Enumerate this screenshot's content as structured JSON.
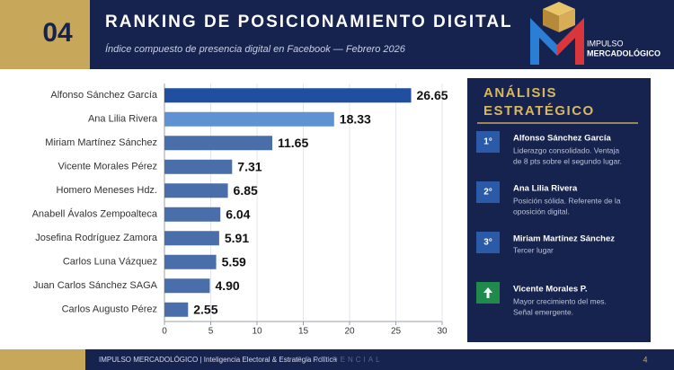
{
  "header": {
    "number": "04",
    "title": "RANKING DE POSICIONAMIENTO DIGITAL",
    "subtitle": "Índice compuesto de presencia digital en Facebook — Febrero 2026",
    "logo_line1": "IMPULSO",
    "logo_line2": "MERCADOLÓGICO"
  },
  "chart_data": {
    "type": "hbar",
    "categories": [
      "Alfonso Sánchez García",
      "Ana Lilia Rivera",
      "Miriam Martínez Sánchez",
      "Vicente Morales Pérez",
      "Homero Meneses Hdz.",
      "Anabell Ávalos Zempoalteca",
      "Josefina Rodríguez Zamora",
      "Carlos Luna Vázquez",
      "Juan Carlos Sánchez SAGA",
      "Carlos Augusto Pérez"
    ],
    "values": [
      26.65,
      18.33,
      11.65,
      7.31,
      6.85,
      6.04,
      5.91,
      5.59,
      4.9,
      2.55
    ],
    "value_labels": [
      "26.65",
      "18.33",
      "11.65",
      "7.31",
      "6.85",
      "6.04",
      "5.91",
      "5.59",
      "4.90",
      "2.55"
    ],
    "colors": [
      "#1f4f9e",
      "#5e93d3",
      "#4a6ea9",
      "#4a6ea9",
      "#4a6ea9",
      "#4a6ea9",
      "#4a6ea9",
      "#4a6ea9",
      "#4a6ea9",
      "#4a6ea9"
    ],
    "xlim": [
      0,
      30
    ],
    "xticks": [
      0,
      5,
      10,
      15,
      20,
      25,
      30
    ],
    "grid": true
  },
  "panel": {
    "title_line1": "ANÁLISIS",
    "title_line2": "ESTRATÉGICO",
    "items": [
      {
        "rank": "1°",
        "name": "Alfonso Sánchez García",
        "lines": [
          "Liderazgo consolidado. Ventaja",
          "de 8 pts sobre el segundo lugar."
        ]
      },
      {
        "rank": "2°",
        "name": "Ana Lilia Rivera",
        "lines": [
          "Posición sólida. Referente de la",
          "oposición digital."
        ]
      },
      {
        "rank": "3°",
        "name": "Miriam Martínez Sánchez",
        "lines": [
          "Tercer lugar"
        ]
      },
      {
        "name": "Vicente Morales P.",
        "lines": [
          "Mayor crecimiento del mes.",
          "Señal emergente."
        ]
      }
    ]
  },
  "footer": {
    "text": "IMPULSO MERCADOLÓGICO  |  Inteligencia Electoral & Estrategia Política",
    "watermark": "CONFIDENCIAL",
    "page": "4"
  }
}
